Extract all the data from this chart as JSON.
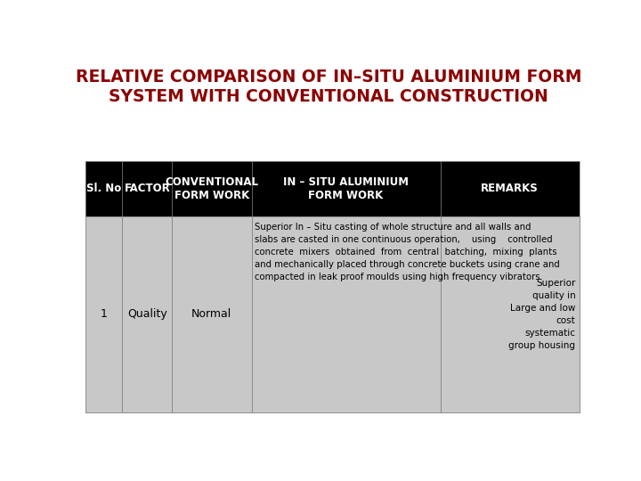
{
  "title_line1": "RELATIVE COMPARISON OF IN–SITU ALUMINIUM FORM",
  "title_line2": "SYSTEM WITH CONVENTIONAL CONSTRUCTION",
  "title_color": "#8B0000",
  "bg_color": "#FFFFFF",
  "header_bg": "#000000",
  "header_text_color": "#FFFFFF",
  "row_bg": "#C8C8C8",
  "row_text_color": "#000000",
  "headers": [
    "Sl. No",
    "FACTOR",
    "CONVENTIONAL\nFORM WORK",
    "IN – SITU ALUMINIUM\nFORM WORK",
    "REMARKS"
  ],
  "sl_no": "1",
  "factor": "Quality",
  "conv_text": "Normal",
  "insitu_text": "Superior In – Situ casting of whole structure and all walls and\nslabs are casted in one continuous operation,    using    controlled\nconcrete  mixers  obtained  from  central  batching,  mixing  plants\nand mechanically placed through concrete buckets using crane and\ncompacted in leak proof moulds using high frequency vibrators",
  "remarks_text": "Superior\nquality in\nLarge and low\ncost\nsystematic\ngroup housing"
}
